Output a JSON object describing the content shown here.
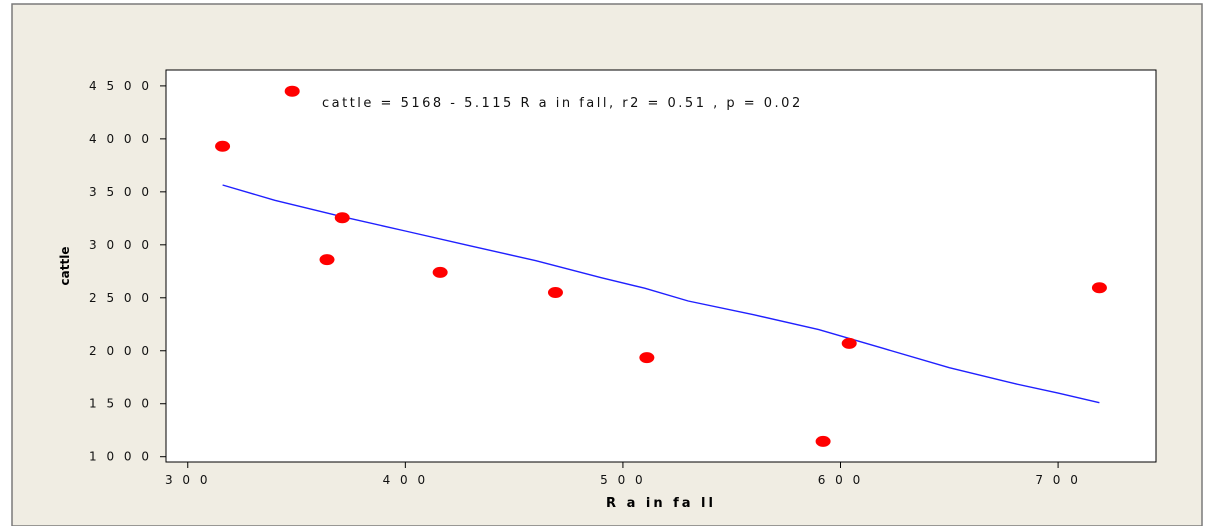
{
  "chart_data": {
    "type": "scatter",
    "title": "",
    "xlabel": "R a in fa ll",
    "ylabel": "cattle",
    "annotation": "cattle =   5168  - 5.115  R a in fall,  r2 = 0.51 ,  p = 0.02",
    "xlim": [
      290,
      745
    ],
    "ylim": [
      950,
      4650
    ],
    "xticks": [
      300,
      400,
      500,
      600,
      700
    ],
    "yticks": [
      1000,
      1500,
      2000,
      2500,
      3000,
      3500,
      4000,
      4500
    ],
    "xtick_labels": [
      "3 0 0",
      "4 0 0",
      "5 0 0",
      "6 0 0",
      "7 0 0"
    ],
    "ytick_labels": [
      "1 0 0 0",
      "1 5 0 0",
      "2 0 0 0",
      "2 5 0 0",
      "3 0 0 0",
      "3 5 0 0",
      "4 0 0 0",
      "4 5 0 0"
    ],
    "grid": false,
    "points": [
      {
        "x": 316,
        "y": 3930
      },
      {
        "x": 348,
        "y": 4450
      },
      {
        "x": 364,
        "y": 2860
      },
      {
        "x": 371,
        "y": 3255
      },
      {
        "x": 416,
        "y": 2740
      },
      {
        "x": 469,
        "y": 2550
      },
      {
        "x": 511,
        "y": 1935
      },
      {
        "x": 592,
        "y": 1145
      },
      {
        "x": 604,
        "y": 2070
      },
      {
        "x": 719,
        "y": 2595
      }
    ],
    "fit_line": {
      "x": [
        316,
        340,
        370,
        400,
        430,
        460,
        490,
        510,
        530,
        560,
        590,
        620,
        650,
        680,
        700,
        719
      ],
      "y": [
        3565,
        3420,
        3270,
        3130,
        2990,
        2850,
        2690,
        2590,
        2470,
        2340,
        2200,
        2020,
        1840,
        1690,
        1600,
        1510
      ]
    },
    "colors": {
      "points": "#ff0000",
      "fit_line": "#2020ff",
      "frame": "#000000",
      "panel": "#ffffff",
      "figure_bg": "#f0ede3",
      "figure_border": "#7a7a7a"
    }
  }
}
